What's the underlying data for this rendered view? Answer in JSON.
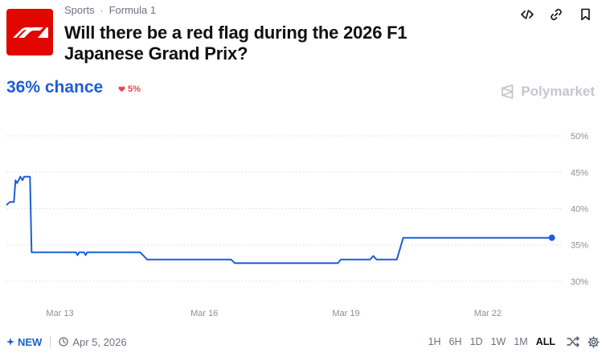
{
  "breadcrumb": {
    "category": "Sports",
    "separator": "·",
    "subcategory": "Formula 1"
  },
  "market": {
    "title": "Will there be a red flag during the 2026 F1 Japanese Grand Prix?"
  },
  "actions": [
    {
      "name": "embed-icon"
    },
    {
      "name": "link-icon"
    },
    {
      "name": "bookmark-icon"
    }
  ],
  "stats": {
    "chance": "36% chance",
    "delta": "5%",
    "delta_direction": "down",
    "delta_color": "#e5484d"
  },
  "brand": {
    "name": "Polymarket"
  },
  "colors": {
    "accent": "#1e5ed6",
    "logo_bg": "#e10600",
    "grid": "#d9dce1"
  },
  "chart_data": {
    "type": "line",
    "yticks": [
      "50%",
      "45%",
      "40%",
      "35%",
      "30%"
    ],
    "xticks": [
      "Mar 13",
      "Mar 16",
      "Mar 19",
      "Mar 22"
    ],
    "ylim": [
      28,
      51
    ],
    "series": [
      {
        "color": "#1e5ed6",
        "points": [
          [
            0.0,
            40.5
          ],
          [
            0.06,
            40.9
          ],
          [
            0.14,
            40.9
          ],
          [
            0.17,
            43.9
          ],
          [
            0.2,
            43.5
          ],
          [
            0.26,
            44.4
          ],
          [
            0.3,
            43.9
          ],
          [
            0.33,
            44.4
          ],
          [
            0.38,
            44.4
          ],
          [
            0.44,
            44.4
          ],
          [
            0.47,
            34.0
          ],
          [
            1.3,
            34.0
          ],
          [
            1.33,
            33.6
          ],
          [
            1.36,
            34.0
          ],
          [
            1.45,
            34.0
          ],
          [
            1.48,
            33.6
          ],
          [
            1.51,
            34.0
          ],
          [
            2.5,
            34.0
          ],
          [
            2.58,
            33.4
          ],
          [
            2.63,
            33.0
          ],
          [
            4.2,
            33.0
          ],
          [
            4.27,
            32.5
          ],
          [
            6.2,
            32.5
          ],
          [
            6.25,
            33.0
          ],
          [
            6.8,
            33.0
          ],
          [
            6.86,
            33.5
          ],
          [
            6.92,
            33.0
          ],
          [
            7.3,
            33.0
          ],
          [
            7.38,
            35.0
          ],
          [
            7.42,
            36.0
          ],
          [
            10.2,
            36.0
          ]
        ]
      }
    ]
  },
  "footer": {
    "new_label": "NEW",
    "date": "Apr 5, 2026",
    "ranges": [
      "1H",
      "6H",
      "1D",
      "1W",
      "1M",
      "ALL"
    ],
    "active_range": "ALL"
  }
}
